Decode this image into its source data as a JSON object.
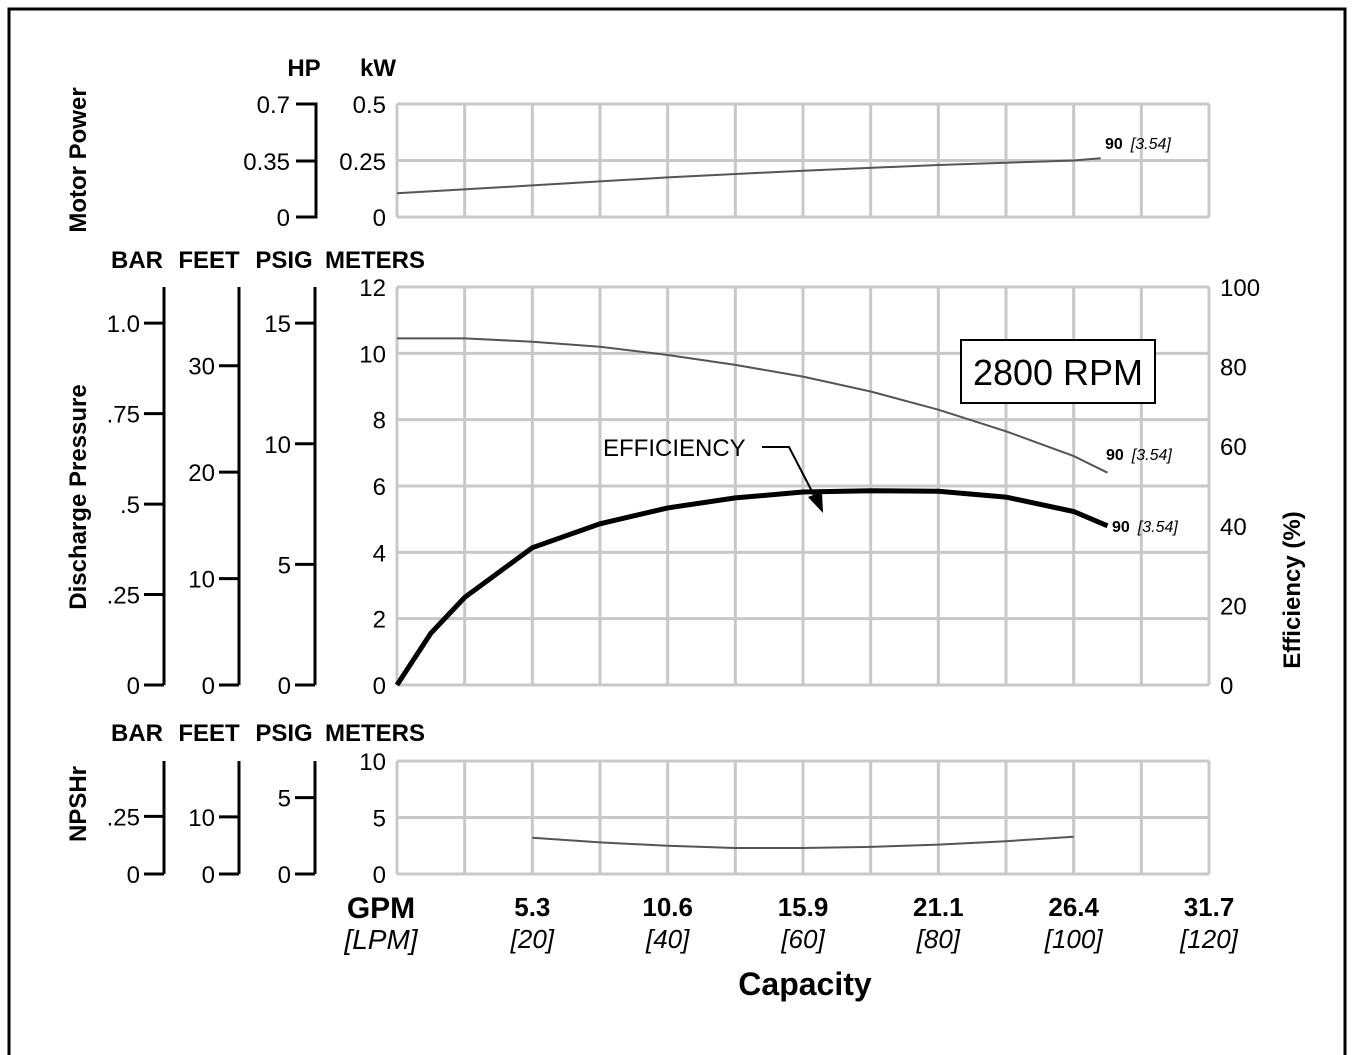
{
  "chart_data": [
    {
      "panel": "motor_power",
      "type": "line",
      "title": "Motor Power",
      "axes": [
        {
          "name": "HP",
          "ticks": [
            "0",
            "0.35",
            "0.7"
          ],
          "range": [
            0,
            0.7
          ]
        },
        {
          "name": "kW",
          "ticks": [
            "0",
            "0.25",
            "0.5"
          ],
          "range": [
            0,
            0.5
          ]
        }
      ],
      "x_range_lpm": [
        0,
        120
      ],
      "grid": true,
      "series": [
        {
          "label": "90",
          "label_italic": "[3.54]",
          "unit": "kW",
          "x": [
            0,
            20,
            40,
            60,
            80,
            100,
            104
          ],
          "y": [
            0.105,
            0.14,
            0.175,
            0.205,
            0.23,
            0.25,
            0.26
          ]
        }
      ]
    },
    {
      "panel": "discharge_pressure",
      "type": "line",
      "title": "Discharge Pressure",
      "right_title": "Efficiency (%)",
      "axes": [
        {
          "name": "BAR",
          "ticks": [
            "0",
            ".25",
            ".5",
            ".75",
            "1.0"
          ],
          "tick_values": [
            0,
            0.25,
            0.5,
            0.75,
            1.0
          ],
          "range": [
            0,
            1.1
          ]
        },
        {
          "name": "FEET",
          "ticks": [
            "0",
            "10",
            "20",
            "30"
          ],
          "tick_values": [
            0,
            10,
            20,
            30
          ],
          "range": [
            0,
            37.4
          ]
        },
        {
          "name": "PSIG",
          "ticks": [
            "0",
            "5",
            "10",
            "15"
          ],
          "tick_values": [
            0,
            5,
            10,
            15
          ],
          "range": [
            0,
            16.5
          ]
        },
        {
          "name": "METERS",
          "ticks": [
            "0",
            "2",
            "4",
            "6",
            "8",
            "10",
            "12"
          ],
          "tick_values": [
            0,
            2,
            4,
            6,
            8,
            10,
            12
          ],
          "range": [
            0,
            12
          ]
        }
      ],
      "right_axis": {
        "ticks": [
          "0",
          "20",
          "40",
          "60",
          "80",
          "100"
        ],
        "range": [
          0,
          100
        ]
      },
      "grid": true,
      "rpm_label": "2800 RPM",
      "annotation": "EFFICIENCY",
      "series": [
        {
          "name": "pressure",
          "label": "90",
          "label_italic": "[3.54]",
          "unit": "meters",
          "x": [
            0,
            10,
            20,
            30,
            40,
            50,
            60,
            70,
            80,
            90,
            100,
            105
          ],
          "y": [
            10.45,
            10.45,
            10.35,
            10.2,
            9.95,
            9.65,
            9.3,
            8.85,
            8.3,
            7.65,
            6.9,
            6.4
          ]
        },
        {
          "name": "efficiency",
          "label": "90",
          "label_italic": "[3.54]",
          "unit": "%",
          "x": [
            0,
            5,
            10,
            20,
            30,
            40,
            50,
            60,
            70,
            80,
            90,
            100,
            105
          ],
          "y": [
            0,
            13,
            22,
            34.5,
            40.5,
            44.5,
            47,
            48.5,
            48.8,
            48.7,
            47.2,
            43.6,
            40
          ]
        }
      ]
    },
    {
      "panel": "npshr",
      "type": "line",
      "title": "NPSHr",
      "axes": [
        {
          "name": "BAR",
          "ticks": [
            "0",
            ".25"
          ],
          "tick_values": [
            0,
            0.25
          ],
          "range": [
            0,
            0.49
          ]
        },
        {
          "name": "FEET",
          "ticks": [
            "0",
            "10"
          ],
          "tick_values": [
            0,
            10
          ],
          "range": [
            0,
            19.8
          ]
        },
        {
          "name": "PSIG",
          "ticks": [
            "0",
            "5"
          ],
          "tick_values": [
            0,
            5
          ],
          "range": [
            0,
            7.4
          ]
        },
        {
          "name": "METERS",
          "ticks": [
            "0",
            "5",
            "10"
          ],
          "tick_values": [
            0,
            5,
            10
          ],
          "range": [
            0,
            10
          ]
        }
      ],
      "grid": true,
      "series": [
        {
          "name": "npshr",
          "unit": "meters",
          "x": [
            20,
            30,
            40,
            50,
            60,
            70,
            80,
            90,
            100
          ],
          "y": [
            3.2,
            2.8,
            2.5,
            2.3,
            2.3,
            2.4,
            2.6,
            2.9,
            3.3
          ]
        }
      ]
    }
  ],
  "x_axis": {
    "unit_main": "GPM",
    "unit_sub": "[LPM]",
    "ticks_gpm": [
      "5.3",
      "10.6",
      "15.9",
      "21.1",
      "26.4",
      "31.7"
    ],
    "ticks_lpm": [
      "[20]",
      "[40]",
      "[60]",
      "[80]",
      "[100]",
      "[120]"
    ],
    "label": "Capacity"
  }
}
